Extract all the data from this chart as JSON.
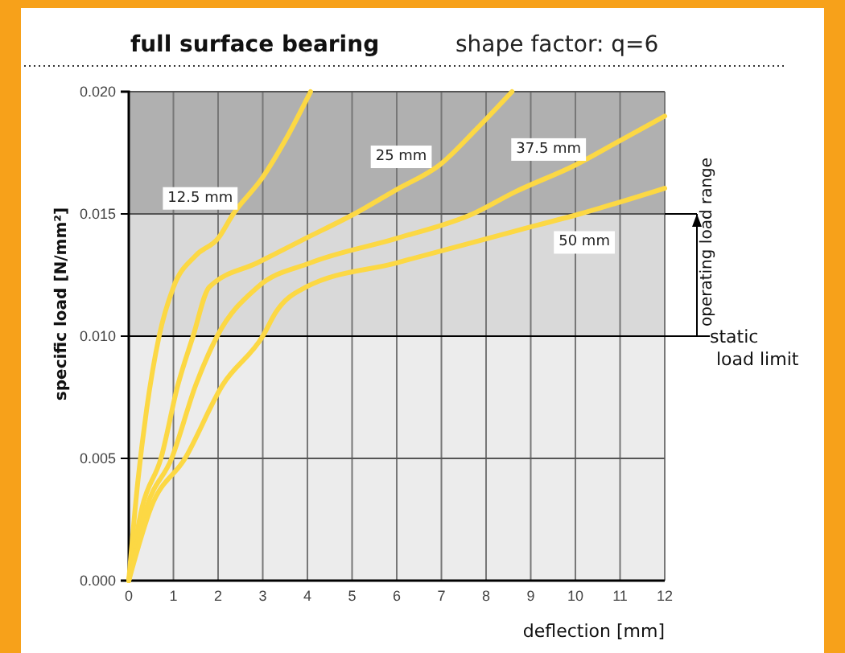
{
  "chart_data": {
    "type": "line",
    "title": "full surface bearing",
    "subtitle": "shape factor: q=6",
    "xlabel": "deflection [mm]",
    "ylabel": "specific load [N/mm²]",
    "xlim": [
      0,
      12
    ],
    "ylim": [
      0,
      0.02
    ],
    "xticks": [
      0,
      1,
      2,
      3,
      4,
      5,
      6,
      7,
      8,
      9,
      10,
      11,
      12
    ],
    "yticks": [
      {
        "value": 0,
        "label": "0.000"
      },
      {
        "value": 0.005,
        "label": "0.005"
      },
      {
        "value": 0.01,
        "label": "0.010"
      },
      {
        "value": 0.015,
        "label": "0.015"
      },
      {
        "value": 0.02,
        "label": "0.020"
      }
    ],
    "grid": true,
    "line_style": "solid",
    "bands": [
      {
        "axis": "y",
        "from": 0,
        "to": 0.01,
        "color": "#ececec"
      },
      {
        "axis": "y",
        "from": 0.01,
        "to": 0.015,
        "color": "#d9d9d9",
        "label": "operating load range"
      },
      {
        "axis": "y",
        "from": 0.015,
        "to": 0.02,
        "color": "#b0b0b0"
      }
    ],
    "ref_lines": [
      {
        "axis": "y",
        "value": 0.01,
        "label": "static load limit",
        "color": "#000000"
      }
    ],
    "series": [
      {
        "name": "12.5 mm",
        "color": "#fcd844",
        "x": [
          0,
          0.2,
          0.4,
          0.68,
          1,
          1.5,
          2,
          2.34,
          3,
          3.5,
          4.07
        ],
        "values": [
          0,
          0.004,
          0.007,
          0.01,
          0.012,
          0.0133,
          0.014,
          0.015,
          0.0165,
          0.018,
          0.02
        ]
      },
      {
        "name": "25 mm",
        "color": "#fcd844",
        "x": [
          0,
          0.3,
          0.72,
          1.1,
          1.44,
          1.8,
          2.88,
          3.96,
          5.05,
          6,
          6.96,
          7.8,
          8.58
        ],
        "values": [
          0,
          0.003,
          0.005,
          0.008,
          0.01,
          0.012,
          0.013,
          0.014,
          0.015,
          0.016,
          0.017,
          0.0185,
          0.02
        ]
      },
      {
        "name": "37.5 mm",
        "color": "#fcd844",
        "x": [
          0,
          0.4,
          0.96,
          1.5,
          1.98,
          2.88,
          4.07,
          6,
          7.7,
          8.65,
          10,
          11,
          12
        ],
        "values": [
          0,
          0.003,
          0.005,
          0.008,
          0.01,
          0.012,
          0.013,
          0.014,
          0.015,
          0.0159,
          0.017,
          0.018,
          0.019
        ]
      },
      {
        "name": "50 mm",
        "color": "#fcd844",
        "x": [
          0,
          0.5,
          1.26,
          2.1,
          3,
          3.3,
          3.96,
          6,
          8.65,
          10.1,
          12
        ],
        "values": [
          0,
          0.003,
          0.005,
          0.008,
          0.01,
          0.011,
          0.012,
          0.013,
          0.0143,
          0.015,
          0.01605
        ]
      }
    ]
  }
}
